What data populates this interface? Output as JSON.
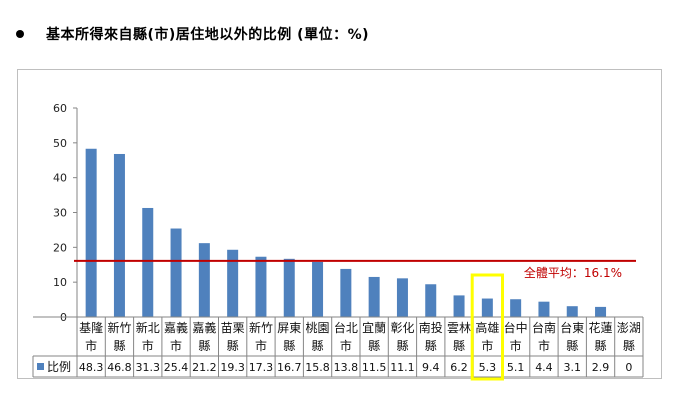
{
  "heading": {
    "bullet_icon": "bullet-dot-icon",
    "text": "基本所得來自縣(市)居住地以外的比例 (單位：%)"
  },
  "chart_data": {
    "type": "bar",
    "categories": [
      [
        "基隆",
        "市"
      ],
      [
        "新竹",
        "縣"
      ],
      [
        "新北",
        "市"
      ],
      [
        "嘉義",
        "市"
      ],
      [
        "嘉義",
        "縣"
      ],
      [
        "苗栗",
        "縣"
      ],
      [
        "新竹",
        "市"
      ],
      [
        "屏東",
        "縣"
      ],
      [
        "桃園",
        "縣"
      ],
      [
        "台北",
        "市"
      ],
      [
        "宜蘭",
        "縣"
      ],
      [
        "彰化",
        "縣"
      ],
      [
        "南投",
        "縣"
      ],
      [
        "雲林",
        "縣"
      ],
      [
        "高雄",
        "市"
      ],
      [
        "台中",
        "市"
      ],
      [
        "台南",
        "市"
      ],
      [
        "台東",
        "縣"
      ],
      [
        "花蓮",
        "縣"
      ],
      [
        "澎湖",
        "縣"
      ]
    ],
    "series": [
      {
        "name": "比例",
        "values": [
          48.3,
          46.8,
          31.3,
          25.4,
          21.2,
          19.3,
          17.3,
          16.7,
          15.8,
          13.8,
          11.5,
          11.1,
          9.4,
          6.2,
          5.3,
          5.1,
          4.4,
          3.1,
          2.9,
          0
        ]
      }
    ],
    "value_labels": [
      "48.3",
      "46.8",
      "31.3",
      "25.4",
      "21.2",
      "19.3",
      "17.3",
      "16.7",
      "15.8",
      "13.8",
      "11.5",
      "11.1",
      "9.4",
      "6.2",
      "5.3",
      "5.1",
      "4.4",
      "3.1",
      "2.9",
      "0"
    ],
    "yticks": [
      "0",
      "10",
      "20",
      "30",
      "40",
      "50",
      "60"
    ],
    "ylim": [
      0,
      60
    ],
    "average": {
      "value": 16.1,
      "label": "全體平均：16.1%"
    },
    "highlight_index": 14,
    "legend_placement": "data-table",
    "colors": {
      "bar": "#4f81bd",
      "average": "#c00000",
      "highlight": "#ffff00",
      "axis": "#868686"
    }
  }
}
